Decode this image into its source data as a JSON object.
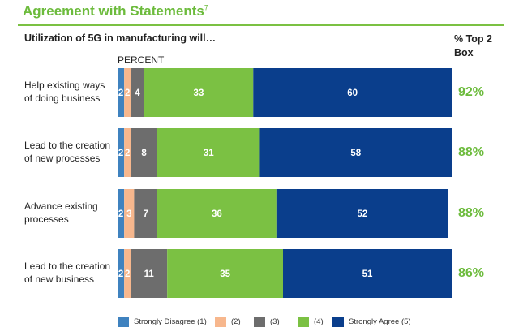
{
  "header": {
    "title": "Agreement with Statements",
    "title_superscript": "7",
    "subtitle": "Utilization of 5G in manufacturing will…",
    "top2_label": "% Top 2 Box",
    "unit_label": "PERCENT"
  },
  "colors": {
    "s1": "#3f82bf",
    "s2": "#f7b78d",
    "s3": "#6d6d6d",
    "s4": "#7bc143",
    "s5": "#0a3e8c",
    "accent": "#6cbb3c"
  },
  "chart_data": {
    "type": "bar",
    "orientation": "horizontal",
    "stacked": true,
    "categories": [
      "Help existing ways of doing business",
      "Lead to the creation of new processes",
      "Advance existing processes",
      "Lead to the creation of new business"
    ],
    "category_lines": [
      [
        "Help existing ways",
        "of doing business"
      ],
      [
        "Lead to the creation",
        "of new processes"
      ],
      [
        "Advance existing",
        "processes"
      ],
      [
        "Lead to the creation",
        "of new business"
      ]
    ],
    "series": [
      {
        "name": "Strongly Disagree (1)",
        "values": [
          2,
          2,
          2,
          2
        ]
      },
      {
        "name": "(2)",
        "values": [
          2,
          2,
          3,
          2
        ]
      },
      {
        "name": "(3)",
        "values": [
          4,
          8,
          7,
          11
        ]
      },
      {
        "name": "(4)",
        "values": [
          33,
          31,
          36,
          35
        ]
      },
      {
        "name": "Strongly Agree (5)",
        "values": [
          60,
          58,
          52,
          51
        ]
      }
    ],
    "top2_box": [
      "92%",
      "88%",
      "88%",
      "86%"
    ],
    "legend_position": "bottom",
    "grid": false
  }
}
